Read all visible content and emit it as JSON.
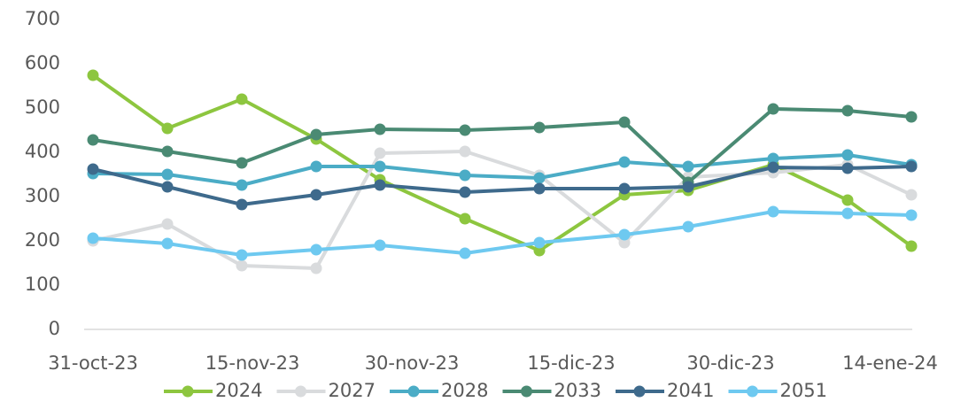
{
  "chart_data": {
    "type": "line",
    "x": [
      "2023-10-31",
      "2023-11-07",
      "2023-11-14",
      "2023-11-21",
      "2023-11-27",
      "2023-12-05",
      "2023-12-12",
      "2023-12-20",
      "2023-12-26",
      "2024-01-03",
      "2024-01-10",
      "2024-01-16"
    ],
    "series": [
      {
        "name": "2024",
        "color": "#8dc63f",
        "values": [
          574,
          454,
          520,
          430,
          338,
          250,
          178,
          304,
          314,
          372,
          292,
          188
        ]
      },
      {
        "name": "2027",
        "color": "#d9dbdd",
        "values": [
          200,
          238,
          144,
          138,
          398,
          402,
          348,
          196,
          344,
          354,
          372,
          304
        ]
      },
      {
        "name": "2028",
        "color": "#4bacc6",
        "values": [
          352,
          350,
          326,
          368,
          368,
          348,
          342,
          378,
          368,
          386,
          394,
          372
        ]
      },
      {
        "name": "2033",
        "color": "#4a8a73",
        "values": [
          428,
          402,
          376,
          440,
          452,
          450,
          456,
          468,
          332,
          498,
          494,
          480
        ]
      },
      {
        "name": "2041",
        "color": "#3e6a8c",
        "values": [
          362,
          322,
          282,
          304,
          326,
          310,
          318,
          318,
          322,
          366,
          364,
          368
        ]
      },
      {
        "name": "2051",
        "color": "#6ec9f0",
        "values": [
          206,
          194,
          168,
          180,
          190,
          172,
          196,
          214,
          232,
          266,
          262,
          258
        ]
      }
    ],
    "xlim": [
      "2023-10-30",
      "2024-01-17"
    ],
    "xticks": [
      {
        "value": "2023-10-31",
        "label": "31-oct-23"
      },
      {
        "value": "2023-11-15",
        "label": "15-nov-23"
      },
      {
        "value": "2023-11-30",
        "label": "30-nov-23"
      },
      {
        "value": "2023-12-15",
        "label": "15-dic-23"
      },
      {
        "value": "2023-12-30",
        "label": "30-dic-23"
      },
      {
        "value": "2024-01-14",
        "label": "14-ene-24"
      }
    ],
    "ylim": [
      0,
      700
    ],
    "yticks": [
      0,
      100,
      200,
      300,
      400,
      500,
      600,
      700
    ],
    "grid": false,
    "legend": "bottom"
  }
}
